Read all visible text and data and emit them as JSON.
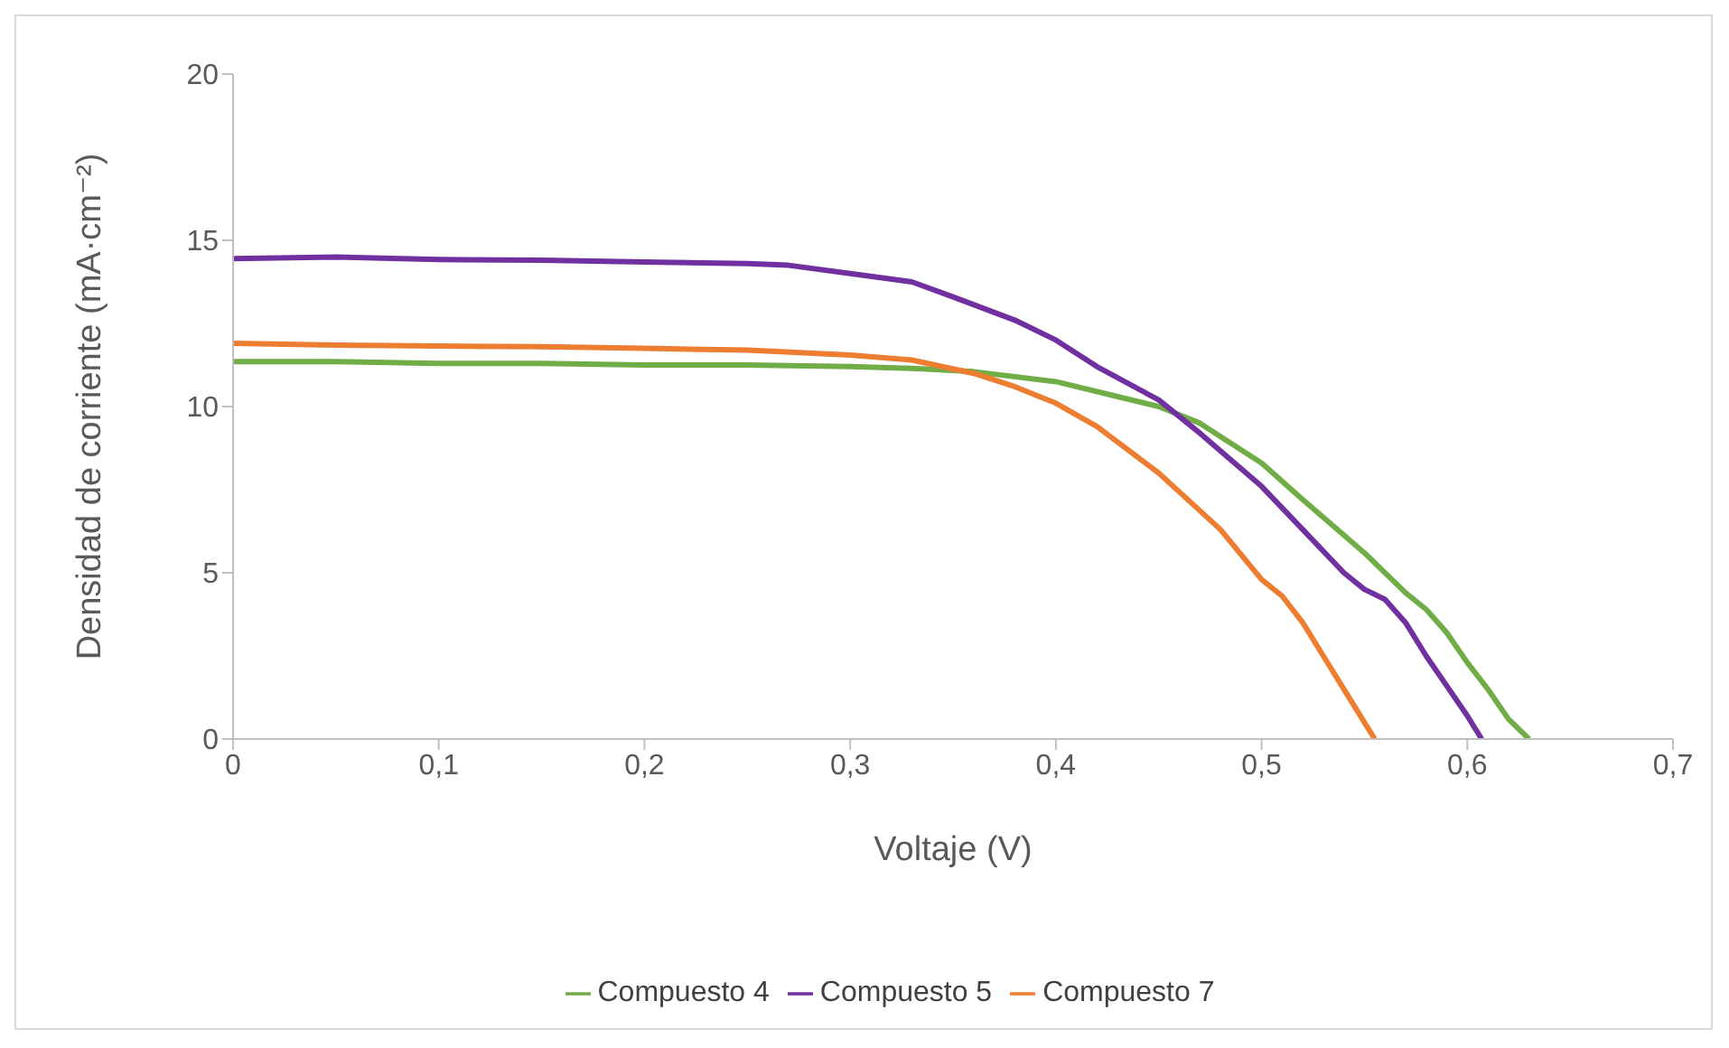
{
  "chart_data": {
    "type": "line",
    "xlabel": "Voltaje (V)",
    "ylabel": "Densidad de corriente (mA·cm⁻²)",
    "xlim": [
      0,
      0.7
    ],
    "ylim": [
      0,
      20
    ],
    "xticks": [
      0,
      {
        "value": 0.1,
        "label": "0,1"
      },
      {
        "value": 0.2,
        "label": "0,2"
      },
      {
        "value": 0.3,
        "label": "0,3"
      },
      {
        "value": 0.4,
        "label": "0,4"
      },
      {
        "value": 0.5,
        "label": "0,5"
      },
      {
        "value": 0.6,
        "label": "0,6"
      },
      {
        "value": 0.7,
        "label": "0,7"
      }
    ],
    "yticks": [
      0,
      5,
      10,
      15,
      20
    ],
    "grid": false,
    "legend": "bottom",
    "marker": "none",
    "line_style": "solid",
    "series": [
      {
        "name": "Compuesto 4",
        "color": "#70ad47",
        "x": [
          0,
          0.05,
          0.1,
          0.15,
          0.2,
          0.25,
          0.3,
          0.33,
          0.36,
          0.4,
          0.43,
          0.45,
          0.47,
          0.5,
          0.52,
          0.55,
          0.57,
          0.58,
          0.59,
          0.6,
          0.61,
          0.62,
          0.63
        ],
        "values": [
          11.35,
          11.35,
          11.3,
          11.3,
          11.25,
          11.25,
          11.2,
          11.15,
          11.05,
          10.75,
          10.3,
          10.0,
          9.5,
          8.3,
          7.2,
          5.6,
          4.4,
          3.9,
          3.2,
          2.3,
          1.5,
          0.6,
          0
        ]
      },
      {
        "name": "Compuesto 5",
        "color": "#7030a0",
        "x": [
          0,
          0.05,
          0.1,
          0.15,
          0.2,
          0.25,
          0.27,
          0.3,
          0.33,
          0.35,
          0.38,
          0.4,
          0.42,
          0.45,
          0.47,
          0.5,
          0.52,
          0.54,
          0.55,
          0.56,
          0.57,
          0.58,
          0.59,
          0.6,
          0.607
        ],
        "values": [
          14.45,
          14.5,
          14.42,
          14.4,
          14.35,
          14.3,
          14.25,
          14.0,
          13.75,
          13.3,
          12.6,
          12.0,
          11.2,
          10.2,
          9.2,
          7.6,
          6.3,
          5.0,
          4.5,
          4.2,
          3.5,
          2.5,
          1.6,
          0.7,
          0
        ]
      },
      {
        "name": "Compuesto 7",
        "color": "#ed7d31",
        "x": [
          0,
          0.05,
          0.1,
          0.15,
          0.2,
          0.25,
          0.3,
          0.33,
          0.36,
          0.38,
          0.4,
          0.42,
          0.45,
          0.48,
          0.5,
          0.51,
          0.52,
          0.53,
          0.54,
          0.555
        ],
        "values": [
          11.9,
          11.85,
          11.82,
          11.8,
          11.75,
          11.7,
          11.55,
          11.4,
          11.0,
          10.6,
          10.1,
          9.4,
          8.0,
          6.3,
          4.8,
          4.3,
          3.5,
          2.5,
          1.5,
          0
        ]
      }
    ]
  }
}
